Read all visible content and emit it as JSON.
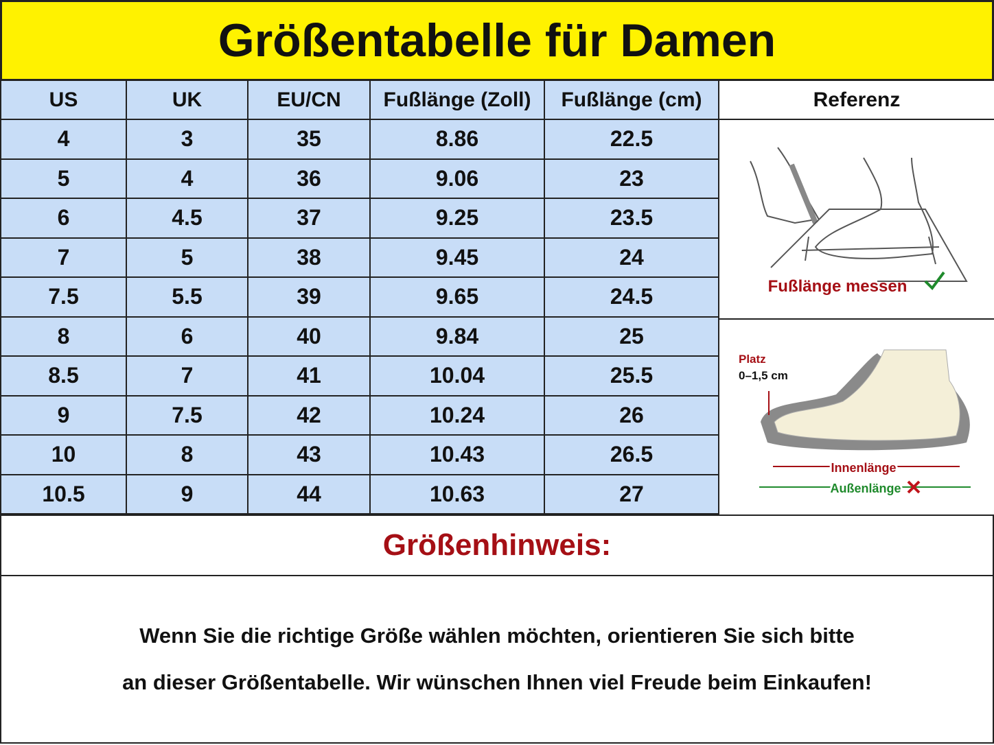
{
  "header": {
    "title": "Größentabelle für Damen"
  },
  "table": {
    "columns": [
      "US",
      "UK",
      "EU/CN",
      "Fußlänge (Zoll)",
      "Fußlänge (cm)"
    ],
    "rows": [
      [
        "4",
        "3",
        "35",
        "8.86",
        "22.5"
      ],
      [
        "5",
        "4",
        "36",
        "9.06",
        "23"
      ],
      [
        "6",
        "4.5",
        "37",
        "9.25",
        "23.5"
      ],
      [
        "7",
        "5",
        "38",
        "9.45",
        "24"
      ],
      [
        "7.5",
        "5.5",
        "39",
        "9.65",
        "24.5"
      ],
      [
        "8",
        "6",
        "40",
        "9.84",
        "25"
      ],
      [
        "8.5",
        "7",
        "41",
        "10.04",
        "25.5"
      ],
      [
        "9",
        "7.5",
        "42",
        "10.24",
        "26"
      ],
      [
        "10",
        "8",
        "43",
        "10.43",
        "26.5"
      ],
      [
        "10.5",
        "9",
        "44",
        "10.63",
        "27"
      ]
    ]
  },
  "reference": {
    "title": "Referenz",
    "measure_label": "Fußlänge messen",
    "space_label": "Platz",
    "space_range": "0–1,5 cm",
    "inner_length": "Innenlänge",
    "outer_length": "Außenlänge"
  },
  "note": {
    "title": "Größenhinweis:",
    "lines": [
      "Wenn Sie die richtige Größe wählen möchten, orientieren Sie sich bitte",
      "an dieser Größentabelle. Wir wünschen Ihnen viel Freude beim Einkaufen!"
    ]
  }
}
